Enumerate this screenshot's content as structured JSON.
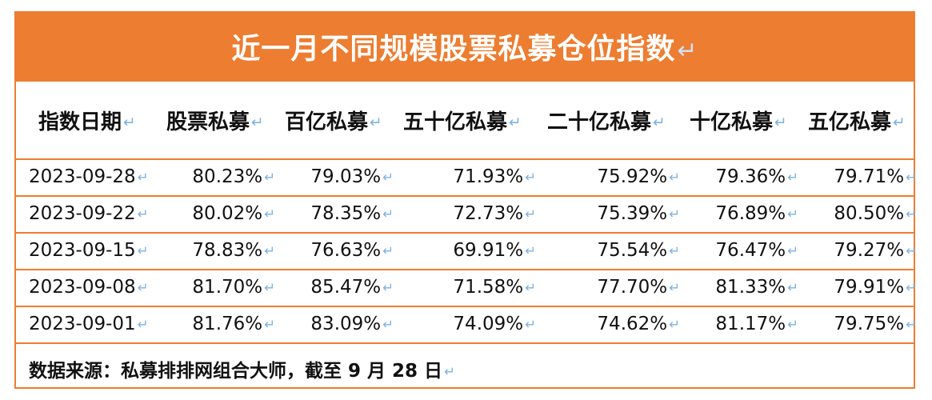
{
  "title": "近一月不同规模股票私募仓位指数",
  "return_mark": "↵",
  "headers": [
    "指数日期",
    "股票私募",
    "百亿私募",
    "五十亿私募",
    "二十亿私募",
    "十亿私募",
    "五亿私募"
  ],
  "rows": [
    [
      "2023-09-28",
      "80.23%",
      "79.03%",
      "71.93%",
      "75.92%",
      "79.36%",
      "79.71%"
    ],
    [
      "2023-09-22",
      "80.02%",
      "78.35%",
      "72.73%",
      "75.39%",
      "76.89%",
      "80.50%"
    ],
    [
      "2023-09-15",
      "78.83%",
      "76.63%",
      "69.91%",
      "75.54%",
      "76.47%",
      "79.27%"
    ],
    [
      "2023-09-08",
      "81.70%",
      "85.47%",
      "71.58%",
      "77.70%",
      "81.33%",
      "79.91%"
    ],
    [
      "2023-09-01",
      "81.76%",
      "83.09%",
      "74.09%",
      "74.62%",
      "81.17%",
      "79.75%"
    ]
  ],
  "footer": "数据来源：私募排排网组合大师，截至 9 月 28 日",
  "colors": {
    "accent": "#ED7D31",
    "return_mark": "#7FB2E0"
  }
}
